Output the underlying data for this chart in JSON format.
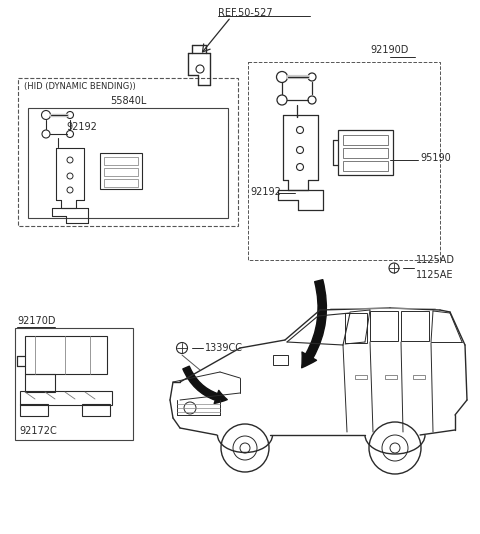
{
  "bg_color": "#ffffff",
  "line_color": "#2a2a2a",
  "text_color": "#2a2a2a",
  "fig_width": 4.8,
  "fig_height": 5.34,
  "dpi": 100,
  "labels": {
    "ref": "REF.50-527",
    "part_92190D": "92190D",
    "part_95190": "95190",
    "part_92192_right": "92192",
    "part_92192_left": "92192",
    "part_1125AD": "1125AD",
    "part_1125AE": "1125AE",
    "part_92170D": "92170D",
    "part_92172C": "92172C",
    "part_1339CC": "1339CC",
    "hid_title": "(HID (DYNAMIC BENDING))",
    "hid_part": "55840L"
  },
  "font_size": 7.0,
  "font_size_small": 6.0
}
